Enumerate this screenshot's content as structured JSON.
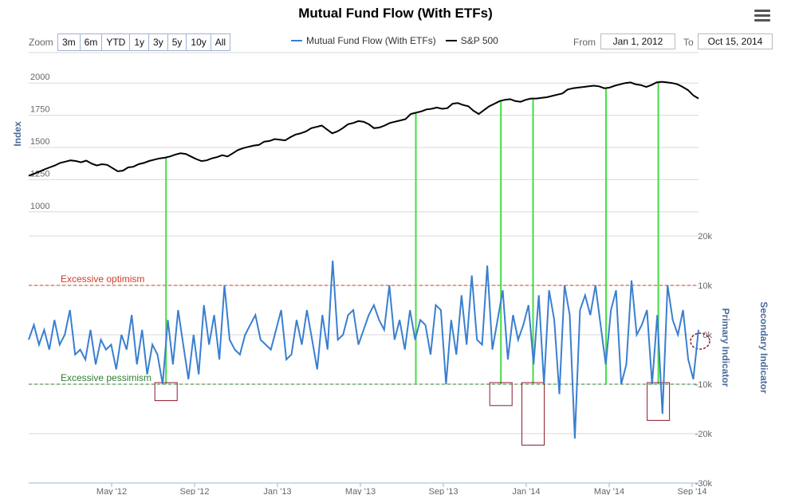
{
  "header": {
    "title": "Mutual Fund Flow (With ETFs)",
    "menu_icon": "hamburger-menu-icon"
  },
  "toolbar": {
    "zoom_label": "Zoom",
    "zoom_buttons": [
      "3m",
      "6m",
      "YTD",
      "1y",
      "3y",
      "5y",
      "10y",
      "All"
    ],
    "from_label": "From",
    "from_value": "Jan 1, 2012",
    "to_label": "To",
    "to_value": "Oct 15, 2014"
  },
  "legend": [
    {
      "name": "Mutual Fund Flow (With ETFs)",
      "color": "#3a7fd0"
    },
    {
      "name": "S&P 500",
      "color": "#000000"
    }
  ],
  "annotations": {
    "optimism": "Excessive optimism",
    "pessimism": "Excessive pessimism",
    "optimism_color": "#d43a2a",
    "pessimism_color": "#2e7d32",
    "signal_line_color": "#44dd44",
    "box_color": "#8b1c2a"
  },
  "chart_data": {
    "type": "line",
    "x_range": [
      "2012-01-01",
      "2014-10-15"
    ],
    "x_tick_labels": [
      "May '12",
      "Sep '12",
      "Jan '13",
      "May '13",
      "Sep '13",
      "Jan '14",
      "May '14",
      "Sep '14"
    ],
    "upper_panel": {
      "ylabel": "Index",
      "y_ticks": [
        "1000",
        "1250",
        "1500",
        "1750",
        "2000"
      ],
      "ylim": [
        850,
        2150
      ],
      "series": {
        "name": "S&P 500",
        "color": "#000000",
        "values": [
          1280,
          1295,
          1312,
          1330,
          1345,
          1360,
          1380,
          1390,
          1400,
          1395,
          1385,
          1398,
          1375,
          1360,
          1370,
          1365,
          1340,
          1315,
          1320,
          1345,
          1350,
          1370,
          1380,
          1395,
          1405,
          1415,
          1420,
          1430,
          1445,
          1455,
          1450,
          1430,
          1410,
          1395,
          1400,
          1415,
          1425,
          1440,
          1430,
          1455,
          1480,
          1495,
          1505,
          1515,
          1520,
          1545,
          1550,
          1565,
          1560,
          1555,
          1580,
          1600,
          1610,
          1625,
          1650,
          1660,
          1670,
          1640,
          1610,
          1625,
          1650,
          1680,
          1690,
          1705,
          1700,
          1680,
          1650,
          1655,
          1670,
          1690,
          1700,
          1710,
          1720,
          1760,
          1770,
          1780,
          1795,
          1800,
          1810,
          1800,
          1805,
          1840,
          1845,
          1830,
          1820,
          1785,
          1760,
          1790,
          1820,
          1840,
          1860,
          1870,
          1875,
          1860,
          1855,
          1870,
          1880,
          1880,
          1885,
          1890,
          1900,
          1910,
          1920,
          1950,
          1960,
          1965,
          1970,
          1975,
          1980,
          1975,
          1960,
          1965,
          1980,
          1990,
          2000,
          2005,
          1990,
          1985,
          1970,
          1985,
          2005,
          2010,
          2005,
          2000,
          1990,
          1970,
          1945,
          1905,
          1880
        ]
      }
    },
    "lower_panel": {
      "ylabel": "Primary Indicator",
      "secondary_ylabel": "Secondary Indicator",
      "y_ticks": [
        "20k",
        "10k",
        "0k",
        "-10k",
        "-20k",
        "-30k"
      ],
      "ylim": [
        -30000,
        20000
      ],
      "optimism_level": 10000,
      "pessimism_level": -10000,
      "series": {
        "name": "Mutual Fund Flow (With ETFs)",
        "color": "#3a7fd0",
        "values": [
          -1000,
          2000,
          -2000,
          1000,
          -3000,
          3000,
          -2000,
          0,
          5000,
          -4000,
          -3000,
          -5000,
          1000,
          -6000,
          -1000,
          -3000,
          -2000,
          -7000,
          0,
          -3000,
          4000,
          -6000,
          1000,
          -8000,
          -2000,
          -4000,
          -10000,
          3000,
          -6000,
          5000,
          -2000,
          -9000,
          0,
          -8000,
          6000,
          -2000,
          4000,
          -5000,
          10000,
          -1000,
          -3000,
          -4000,
          0,
          2000,
          4000,
          -1000,
          -2000,
          -3000,
          1000,
          5000,
          -5000,
          -4000,
          3000,
          -2000,
          5000,
          -1000,
          -7000,
          4000,
          -3000,
          15000,
          -1000,
          0,
          4000,
          5000,
          -2000,
          1000,
          4000,
          6000,
          3000,
          1000,
          10000,
          -1000,
          3000,
          -3000,
          5000,
          -1000,
          3000,
          2000,
          -4000,
          6000,
          5000,
          -10000,
          3000,
          -4000,
          8000,
          -2000,
          12000,
          -1000,
          -2000,
          14000,
          -3000,
          3000,
          9000,
          -5000,
          4000,
          -1000,
          2000,
          6000,
          -6000,
          8000,
          -10000,
          9000,
          3000,
          -12000,
          10000,
          4000,
          -21000,
          5000,
          8000,
          4000,
          10000,
          2000,
          -6000,
          5000,
          9000,
          -10000,
          -6000,
          11000,
          0,
          2000,
          5000,
          -10000,
          4000,
          -16000,
          10000,
          3000,
          0,
          5000,
          -5000,
          -9000,
          1000
        ]
      }
    },
    "signal_x_fractions": [
      0.205,
      0.578,
      0.705,
      0.753,
      0.862,
      0.94
    ],
    "boxes": [
      {
        "x_fraction": 0.205,
        "y_top": -10000,
        "y_bottom": -13000
      },
      {
        "x_fraction": 0.705,
        "y_top": -10000,
        "y_bottom": -14000
      },
      {
        "x_fraction": 0.753,
        "y_top": -10000,
        "y_bottom": -22000
      },
      {
        "x_fraction": 0.94,
        "y_top": -10000,
        "y_bottom": -17000
      }
    ]
  }
}
